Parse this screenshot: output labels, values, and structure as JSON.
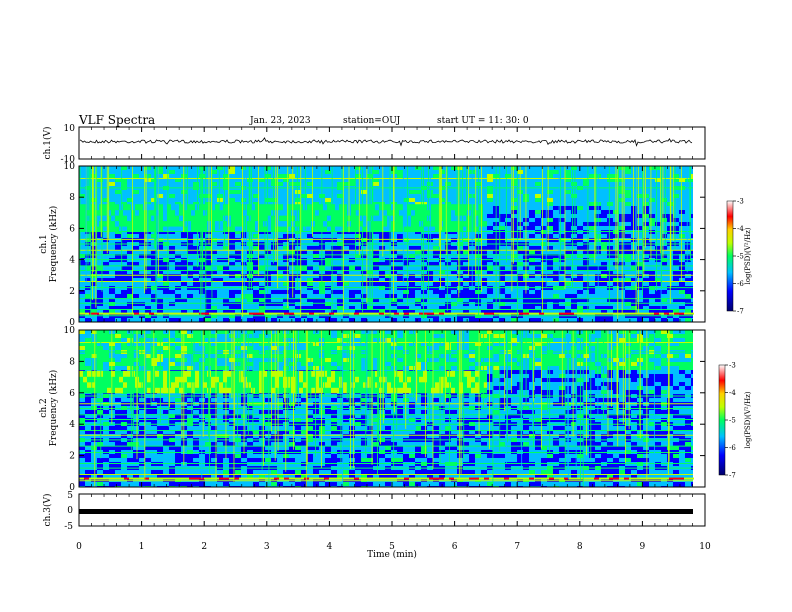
{
  "header": {
    "title": "VLF Spectra",
    "date": "Jan. 23, 2023",
    "station": "station=OUJ",
    "start": "start  UT  =   11: 30: 0"
  },
  "colors": {
    "spectrogram_base": "#00007a",
    "waveform": "#000000",
    "colormap": [
      "#00006a",
      "#0000ff",
      "#00c0ff",
      "#00ff60",
      "#c0ff00",
      "#ffd000",
      "#ff0000",
      "#ffffff"
    ]
  },
  "chart_data": [
    {
      "type": "line",
      "panel": "ch1-waveform",
      "ylabel": "ch.1(V)",
      "ylim": [
        -10,
        10
      ],
      "yticks": [
        "10",
        "-10"
      ],
      "xlim": [
        0,
        10
      ],
      "description_value": "noisy waveform near +0.5 V"
    },
    {
      "type": "heatmap",
      "panel": "ch1-spectrogram",
      "ylabel": "ch.1\nFrequency (kHz)",
      "ylabel_line1": "ch.1",
      "ylabel_line2": "Frequency (kHz)",
      "ylim": [
        0,
        10
      ],
      "yticks": [
        "0",
        "2",
        "4",
        "6",
        "8",
        "10"
      ],
      "xlim": [
        0,
        10
      ],
      "colorbar": {
        "label": "log(PSD)(V²/Hz)",
        "range": [
          -7,
          -3
        ],
        "ticks": [
          "-3",
          "-4",
          "-5",
          "-6",
          "-7"
        ]
      },
      "features": {
        "band_khz": [
          5.8,
          7.2
        ],
        "band_end_min": 6.5
      }
    },
    {
      "type": "heatmap",
      "panel": "ch2-spectrogram",
      "ylabel_line1": "ch.2",
      "ylabel_line2": "Frequency (kHz)",
      "ylim": [
        0,
        10
      ],
      "yticks": [
        "0",
        "2",
        "4",
        "6",
        "8",
        "10"
      ],
      "xlim": [
        0,
        10
      ],
      "colorbar": {
        "label": "log(PSD)(V²/Hz)",
        "range": [
          -7,
          -3
        ],
        "ticks": [
          "-3",
          "-4",
          "-5",
          "-6",
          "-7"
        ]
      },
      "features": {
        "band_khz": [
          6.0,
          7.2
        ],
        "band_end_min": 6.5
      }
    },
    {
      "type": "line",
      "panel": "ch3-waveform",
      "ylabel": "ch.3(V)",
      "ylim": [
        -5,
        5
      ],
      "yticks": [
        "5",
        "0",
        "-5"
      ],
      "xlim": [
        0,
        10
      ],
      "description_value": "flat line near -1 V"
    }
  ],
  "xaxis": {
    "label": "Time  (min)",
    "ticks": [
      "0",
      "1",
      "2",
      "3",
      "4",
      "5",
      "6",
      "7",
      "8",
      "9",
      "10"
    ]
  }
}
